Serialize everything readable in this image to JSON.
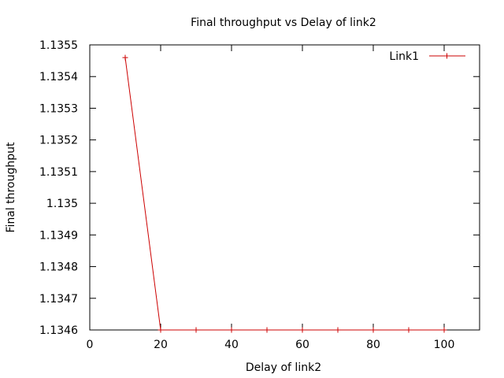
{
  "chart_data": {
    "type": "line",
    "title": "Final throughput vs Delay of link2",
    "xlabel": "Delay of link2",
    "ylabel": "Final throughput",
    "xlim": [
      0,
      110
    ],
    "ylim": [
      1.1346,
      1.1355
    ],
    "x_ticks": [
      "0",
      "20",
      "40",
      "60",
      "80",
      "100"
    ],
    "y_ticks": [
      "1.1346",
      "1.1347",
      "1.1348",
      "1.1349",
      "1.135",
      "1.1351",
      "1.1352",
      "1.1353",
      "1.1354",
      "1.1355"
    ],
    "grid": false,
    "legend_position": "top-right",
    "series": [
      {
        "name": "Link1",
        "color": "#cc0000",
        "marker": "plus",
        "x": [
          10,
          20,
          30,
          40,
          50,
          60,
          70,
          80,
          90,
          100
        ],
        "y": [
          1.13546,
          1.1346,
          1.1346,
          1.1346,
          1.1346,
          1.1346,
          1.1346,
          1.1346,
          1.1346,
          1.1346
        ]
      }
    ]
  }
}
